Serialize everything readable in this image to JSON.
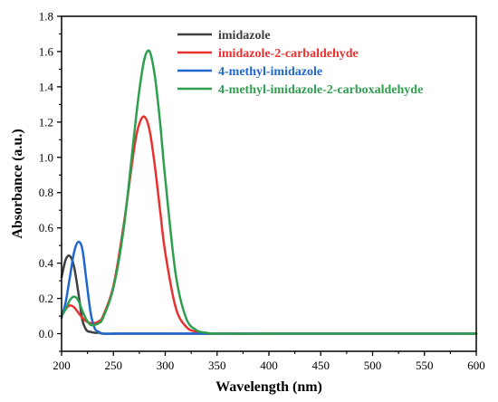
{
  "chart_data": {
    "type": "line",
    "xlabel": "Wavelength (nm)",
    "ylabel": "Absorbance (a.u.)",
    "xlim": [
      200,
      600
    ],
    "ylim": [
      -0.1,
      1.8
    ],
    "xticks": [
      200,
      250,
      300,
      350,
      400,
      450,
      500,
      550,
      600
    ],
    "xtick_labels": [
      "200",
      "250",
      "300",
      "350",
      "400",
      "450",
      "500",
      "550",
      "600"
    ],
    "yticks": [
      0.0,
      0.2,
      0.4,
      0.6,
      0.8,
      1.0,
      1.2,
      1.4,
      1.6,
      1.8
    ],
    "ytick_labels": [
      "0.0",
      "0.2",
      "0.4",
      "0.6",
      "0.8",
      "1.0",
      "1.2",
      "1.4",
      "1.6",
      "1.8"
    ],
    "grid": false,
    "legend_position": "top-right",
    "x": [
      200,
      204,
      208,
      212,
      216,
      220,
      224,
      228,
      232,
      236,
      240,
      250,
      260,
      270,
      275,
      280,
      285,
      290,
      295,
      300,
      310,
      320,
      330,
      340,
      350,
      400,
      450,
      500,
      550,
      600
    ],
    "series": [
      {
        "name": "imidazole",
        "color": "#404040",
        "values": [
          0.32,
          0.42,
          0.44,
          0.38,
          0.24,
          0.08,
          0.02,
          0.01,
          0.005,
          0.005,
          0.0,
          0.0,
          0.0,
          0.0,
          0.0,
          0.0,
          0.0,
          0.0,
          0.0,
          0.0,
          0.0,
          0.0,
          0.0,
          0.0,
          0.0,
          0.0,
          0.0,
          0.0,
          0.0,
          0.0
        ]
      },
      {
        "name": "imidazole-2-carbaldehyde",
        "color": "#e8312f",
        "values": [
          0.1,
          0.14,
          0.16,
          0.15,
          0.12,
          0.09,
          0.07,
          0.06,
          0.06,
          0.07,
          0.1,
          0.27,
          0.62,
          1.05,
          1.19,
          1.23,
          1.15,
          0.95,
          0.7,
          0.46,
          0.15,
          0.04,
          0.01,
          0.0,
          0.0,
          0.0,
          0.0,
          0.0,
          0.0,
          0.0
        ]
      },
      {
        "name": "4-methyl-imidazole",
        "color": "#1e66d0",
        "values": [
          0.09,
          0.18,
          0.32,
          0.46,
          0.52,
          0.48,
          0.3,
          0.12,
          0.03,
          0.01,
          0.0,
          0.0,
          0.0,
          0.0,
          0.0,
          0.0,
          0.0,
          0.0,
          0.0,
          0.0,
          0.0,
          0.0,
          0.0,
          0.0,
          0.0,
          0.0,
          0.0,
          0.0,
          0.0,
          0.0
        ]
      },
      {
        "name": "4-methyl-imidazole-2-carboxaldehyde",
        "color": "#2e9e4f",
        "values": [
          0.1,
          0.14,
          0.19,
          0.21,
          0.19,
          0.13,
          0.08,
          0.05,
          0.05,
          0.06,
          0.09,
          0.26,
          0.6,
          1.13,
          1.38,
          1.56,
          1.6,
          1.46,
          1.2,
          0.88,
          0.34,
          0.09,
          0.02,
          0.005,
          0.0,
          0.0,
          0.0,
          0.0,
          0.0,
          0.0
        ]
      }
    ]
  }
}
